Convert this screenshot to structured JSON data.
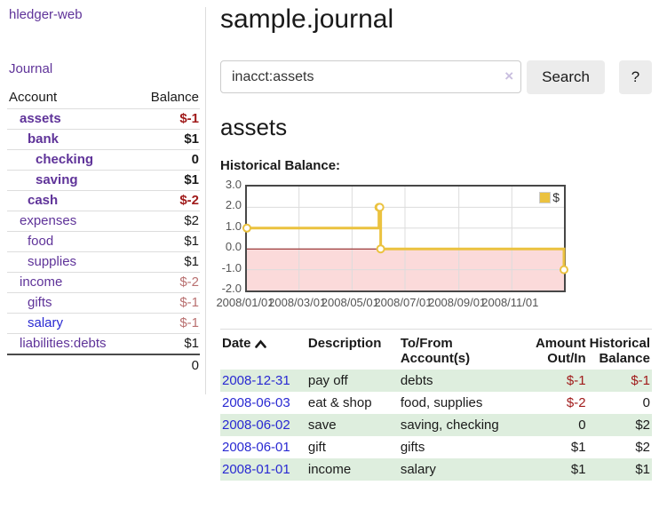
{
  "app": {
    "title": "hledger-web",
    "nav_journal": "Journal"
  },
  "colors": {
    "link_purple": "#5f3399",
    "link_blue": "#2929d2",
    "negative": "#a01b1b",
    "negative_muted": "#b97070",
    "row_green": "#deeede",
    "accent_gold": "#ebc23f",
    "chart_pink": "#fbdada",
    "zero_line_red": "#8b1515"
  },
  "sidebar": {
    "header": {
      "account": "Account",
      "balance": "Balance"
    },
    "accounts": [
      {
        "name": "assets",
        "balance": "$-1",
        "depth": 1,
        "bold": true
      },
      {
        "name": "bank",
        "balance": "$1",
        "depth": 2,
        "bold": true
      },
      {
        "name": "checking",
        "balance": "0",
        "depth": 3,
        "bold": true
      },
      {
        "name": "saving",
        "balance": "$1",
        "depth": 3,
        "bold": true
      },
      {
        "name": "cash",
        "balance": "$-2",
        "depth": 2,
        "bold": true
      },
      {
        "name": "expenses",
        "balance": "$2",
        "depth": 1,
        "bold": false
      },
      {
        "name": "food",
        "balance": "$1",
        "depth": 2,
        "bold": false
      },
      {
        "name": "supplies",
        "balance": "$1",
        "depth": 2,
        "bold": false
      },
      {
        "name": "income",
        "balance": "$-2",
        "depth": 1,
        "bold": false
      },
      {
        "name": "gifts",
        "balance": "$-1",
        "depth": 2,
        "bold": false
      },
      {
        "name": "salary",
        "balance": "$-1",
        "depth": 2,
        "bold": false,
        "link_blue": true
      },
      {
        "name": "liabilities:debts",
        "balance": "$1",
        "depth": 1,
        "bold": false
      }
    ],
    "total": "0"
  },
  "header": {
    "title": "sample.journal"
  },
  "search": {
    "value": "inacct:assets",
    "clear_label": "×",
    "button": "Search",
    "help_button": "?"
  },
  "account_page": {
    "heading": "assets",
    "chart_label": "Historical Balance:"
  },
  "chart_data": {
    "type": "line",
    "title": "Historical Balance",
    "step": true,
    "series": [
      {
        "name": "$",
        "color": "#ebc23f",
        "points": [
          [
            "2008-01-01",
            1
          ],
          [
            "2008-06-01",
            2
          ],
          [
            "2008-06-02",
            2
          ],
          [
            "2008-06-03",
            0
          ],
          [
            "2008-12-31",
            -1
          ]
        ]
      }
    ],
    "ylim": [
      -2,
      3
    ],
    "yticks": [
      {
        "value": 3,
        "label": "3.0"
      },
      {
        "value": 2,
        "label": "2.0"
      },
      {
        "value": 1,
        "label": "1.0"
      },
      {
        "value": 0,
        "label": "0.0"
      },
      {
        "value": -1,
        "label": "-1.0"
      },
      {
        "value": -2,
        "label": "-2.0"
      }
    ],
    "xlim": [
      "2008-01-01",
      "2008-12-31"
    ],
    "xticks": [
      {
        "date": "2008-01-01",
        "label": "2008/01/01"
      },
      {
        "date": "2008-03-01",
        "label": "2008/03/01"
      },
      {
        "date": "2008-05-01",
        "label": "2008/05/01"
      },
      {
        "date": "2008-07-01",
        "label": "2008/07/01"
      },
      {
        "date": "2008-09-01",
        "label": "2008/09/01"
      },
      {
        "date": "2008-11-01",
        "label": "2008/11/01"
      }
    ],
    "grid": true,
    "negative_region_fill": "#fbdada",
    "zero_line_color": "#8b1515",
    "legend": {
      "position": "top-right",
      "label": "$"
    }
  },
  "register": {
    "columns": [
      {
        "label": "Date",
        "sorted": "ascending"
      },
      {
        "label": "Description"
      },
      {
        "label": "To/From Account(s)"
      },
      {
        "label": "Amount Out/In"
      },
      {
        "label": "Historical Balance"
      }
    ],
    "rows": [
      {
        "date": "2008-12-31",
        "description": "pay off",
        "accounts": "debts",
        "amount": "$-1",
        "balance": "$-1"
      },
      {
        "date": "2008-06-03",
        "description": "eat & shop",
        "accounts": "food, supplies",
        "amount": "$-2",
        "balance": "0"
      },
      {
        "date": "2008-06-02",
        "description": "save",
        "accounts": "saving, checking",
        "amount": "0",
        "balance": "$2"
      },
      {
        "date": "2008-06-01",
        "description": "gift",
        "accounts": "gifts",
        "amount": "$1",
        "balance": "$2"
      },
      {
        "date": "2008-01-01",
        "description": "income",
        "accounts": "salary",
        "amount": "$1",
        "balance": "$1"
      }
    ]
  }
}
